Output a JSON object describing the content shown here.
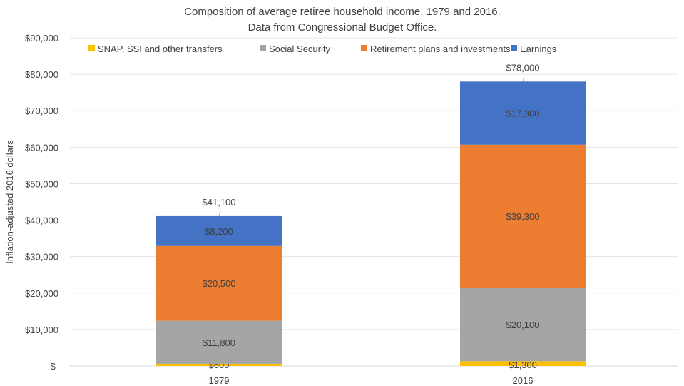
{
  "chart_data": {
    "type": "bar",
    "stacked": true,
    "title": "Composition of average retiree household income, 1979 and 2016.",
    "subtitle": "Data from Congressional Budget Office.",
    "xlabel": "",
    "ylabel": "Inflation-adjusted 2016 dollars",
    "ylim": [
      0,
      90000
    ],
    "y_ticks": [
      0,
      10000,
      20000,
      30000,
      40000,
      50000,
      60000,
      70000,
      80000,
      90000
    ],
    "y_tick_labels": [
      "$-",
      "$10,000",
      "$20,000",
      "$30,000",
      "$40,000",
      "$50,000",
      "$60,000",
      "$70,000",
      "$80,000",
      "$90,000"
    ],
    "grid": true,
    "legend_position": "top",
    "categories": [
      "1979",
      "2016"
    ],
    "series": [
      {
        "name": "SNAP, SSI and other transfers",
        "color": "#FFC000",
        "values": [
          600,
          1300
        ],
        "labels": [
          "$600",
          "$1,300"
        ]
      },
      {
        "name": "Social Security",
        "color": "#A5A5A5",
        "values": [
          11800,
          20100
        ],
        "labels": [
          "$11,800",
          "$20,100"
        ]
      },
      {
        "name": "Retirement plans and investments",
        "color": "#ED7D31",
        "values": [
          20500,
          39300
        ],
        "labels": [
          "$20,500",
          "$39,300"
        ]
      },
      {
        "name": "Earnings",
        "color": "#4472C4",
        "values": [
          8200,
          17300
        ],
        "labels": [
          "$8,200",
          "$17,300"
        ]
      }
    ],
    "totals": [
      41100,
      78000
    ],
    "total_labels": [
      "$41,100",
      "$78,000"
    ]
  }
}
